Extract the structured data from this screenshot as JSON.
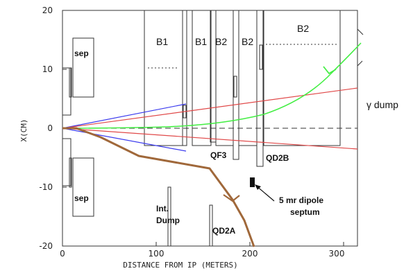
{
  "figure": {
    "x_axis_title": "DISTANCE FROM IP (METERS)",
    "y_axis_title": "X(CM)",
    "x_ticks": [
      "0",
      "100",
      "200",
      "300"
    ],
    "y_ticks": [
      "20",
      "10",
      "0",
      "-10",
      "-20"
    ]
  },
  "labels": {
    "sep_top": "sep",
    "sep_bottom": "sep",
    "b1_left": "B1",
    "b1_right": "B1",
    "b2_a": "B2",
    "b2_b": "B2",
    "b2_c": "B2",
    "qf3": "QF3",
    "qd2b": "QD2B",
    "int_dump_1": "Int.",
    "int_dump_2": "Dump",
    "qd2a": "QD2A",
    "gamma_dump": "γ dump",
    "septum_1": "5 mr dipole",
    "septum_2": "septum"
  },
  "colors": {
    "blue": "#3a3aee",
    "red": "#e04848",
    "green": "#44ee44",
    "brown": "#a0683a"
  }
}
